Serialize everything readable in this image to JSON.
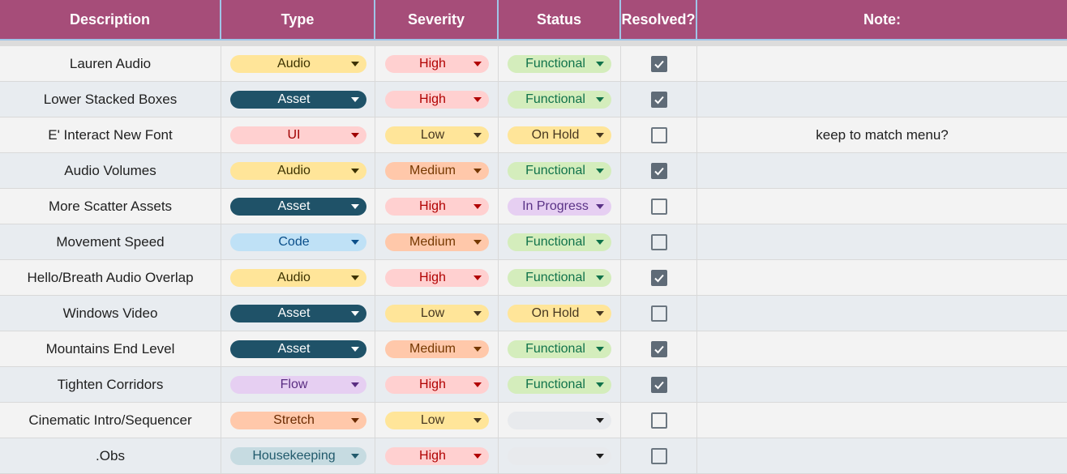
{
  "headers": {
    "description": "Description",
    "type": "Type",
    "severity": "Severity",
    "status": "Status",
    "resolved": "Resolved?",
    "note": "Note:"
  },
  "colors": {
    "header_bg": "#a64d79",
    "header_border": "#9fc5e8",
    "checkbox_checked": "#5f6b77"
  },
  "chip_styles": {
    "Audio": {
      "bg": "#ffe599",
      "fg": "#3c3200",
      "caret": "#3c3200"
    },
    "Asset": {
      "bg": "#1f5268",
      "fg": "#ffffff",
      "caret": "#ffffff"
    },
    "UI": {
      "bg": "#ffd0d0",
      "fg": "#a00000",
      "caret": "#a00000"
    },
    "Code": {
      "bg": "#bfe1f6",
      "fg": "#0b4f8a",
      "caret": "#0b4f8a"
    },
    "Flow": {
      "bg": "#e6cff2",
      "fg": "#5a2d82",
      "caret": "#5a2d82"
    },
    "Stretch": {
      "bg": "#ffc8aa",
      "fg": "#6b2a00",
      "caret": "#6b2a00"
    },
    "Housekeeping": {
      "bg": "#c6dbe1",
      "fg": "#215a6c",
      "caret": "#215a6c"
    },
    "High": {
      "bg": "#ffd0d0",
      "fg": "#b10202",
      "caret": "#b10202"
    },
    "Low": {
      "bg": "#ffe599",
      "fg": "#473821",
      "caret": "#473821"
    },
    "Medium": {
      "bg": "#ffc8aa",
      "fg": "#753800",
      "caret": "#753800"
    },
    "Functional": {
      "bg": "#d4edbc",
      "fg": "#11734b",
      "caret": "#11734b"
    },
    "On Hold": {
      "bg": "#ffe599",
      "fg": "#473821",
      "caret": "#473821"
    },
    "In Progress": {
      "bg": "#e6cff2",
      "fg": "#5a3286",
      "caret": "#5a3286"
    },
    "": {
      "bg": "#e8eaed",
      "fg": "#1f1f1f",
      "caret": "#1f1f1f"
    }
  },
  "rows": [
    {
      "description": "Lauren Audio",
      "type": "Audio",
      "severity": "High",
      "status": "Functional",
      "resolved": true,
      "note": ""
    },
    {
      "description": "Lower Stacked Boxes",
      "type": "Asset",
      "severity": "High",
      "status": "Functional",
      "resolved": true,
      "note": ""
    },
    {
      "description": "E' Interact New Font",
      "type": "UI",
      "severity": "Low",
      "status": "On Hold",
      "resolved": false,
      "note": "keep to match menu?"
    },
    {
      "description": "Audio Volumes",
      "type": "Audio",
      "severity": "Medium",
      "status": "Functional",
      "resolved": true,
      "note": ""
    },
    {
      "description": "More Scatter Assets",
      "type": "Asset",
      "severity": "High",
      "status": "In Progress",
      "resolved": false,
      "note": ""
    },
    {
      "description": "Movement Speed",
      "type": "Code",
      "severity": "Medium",
      "status": "Functional",
      "resolved": false,
      "note": ""
    },
    {
      "description": "Hello/Breath Audio Overlap",
      "type": "Audio",
      "severity": "High",
      "status": "Functional",
      "resolved": true,
      "note": ""
    },
    {
      "description": "Windows Video",
      "type": "Asset",
      "severity": "Low",
      "status": "On Hold",
      "resolved": false,
      "note": ""
    },
    {
      "description": "Mountains End Level",
      "type": "Asset",
      "severity": "Medium",
      "status": "Functional",
      "resolved": true,
      "note": ""
    },
    {
      "description": "Tighten Corridors",
      "type": "Flow",
      "severity": "High",
      "status": "Functional",
      "resolved": true,
      "note": ""
    },
    {
      "description": "Cinematic Intro/Sequencer",
      "type": "Stretch",
      "severity": "Low",
      "status": "",
      "resolved": false,
      "note": ""
    },
    {
      "description": ".Obs",
      "type": "Housekeeping",
      "severity": "High",
      "status": "",
      "resolved": false,
      "note": ""
    }
  ]
}
